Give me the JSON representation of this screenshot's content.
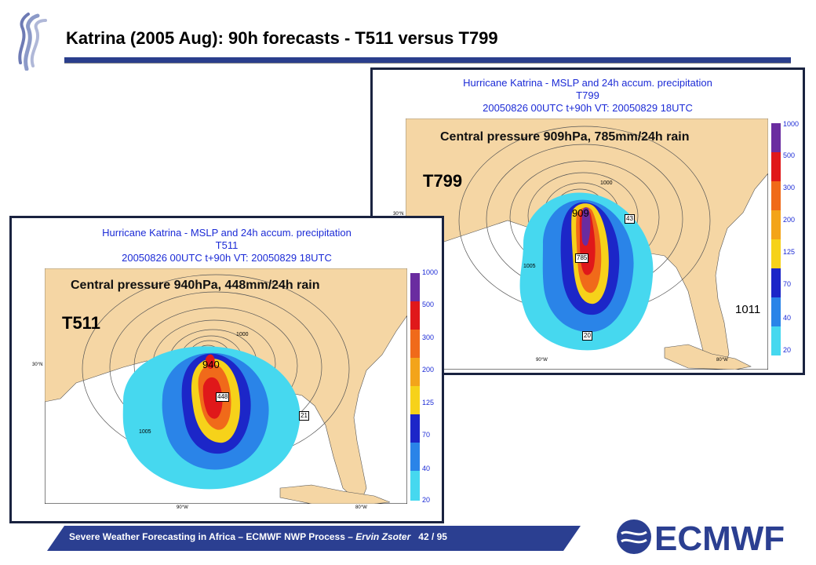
{
  "slide": {
    "title": "Katrina (2005 Aug): 90h forecasts - T511 versus T799",
    "footer": {
      "text": "Severe Weather Forecasting in Africa – ECMWF NWP Process – ",
      "author": "Ervin Zsoter",
      "page": "42 / 95"
    },
    "logo_text": "ECMWF"
  },
  "panels": {
    "t799": {
      "header_line1": "Hurricane Katrina - MSLP and 24h accum. precipitation",
      "header_line2": "T799",
      "header_line3": "20050826 00UTC  t+90h  VT: 20050829 18UTC",
      "central_pressure": "Central pressure 909hPa, 785mm/24h rain",
      "model_label": "T799",
      "low_value": "909",
      "max_rain_value": "785",
      "high_value": "1011",
      "small_labels": [
        "43",
        "20"
      ],
      "lon_labels": [
        "90°W",
        "80°W"
      ],
      "lat_label": "30°N"
    },
    "t511": {
      "header_line1": "Hurricane Katrina - MSLP and 24h accum. precipitation",
      "header_line2": "T511",
      "header_line3": "20050826 00UTC  t+90h  VT: 20050829 18UTC",
      "central_pressure": "Central pressure 940hPa, 448mm/24h rain",
      "model_label": "T511",
      "low_value": "940",
      "max_rain_value": "448",
      "small_labels": [
        "21"
      ],
      "lon_labels": [
        "90°W",
        "80°W"
      ],
      "lat_label": "30°N"
    }
  },
  "colorbar": {
    "levels": [
      "1000",
      "500",
      "300",
      "200",
      "125",
      "70",
      "40",
      "20"
    ],
    "colors": [
      "#6a2ca0",
      "#e0181a",
      "#f06a1a",
      "#f3a41a",
      "#f6d21a",
      "#1c26c8",
      "#2a84e8",
      "#46d8ef"
    ]
  },
  "colors": {
    "title_bar": "#2a3e8c",
    "land": "#f5d6a4",
    "sea": "#ffffff",
    "footer_bar": "#2b3f91",
    "header_text": "#1c2bd6"
  }
}
